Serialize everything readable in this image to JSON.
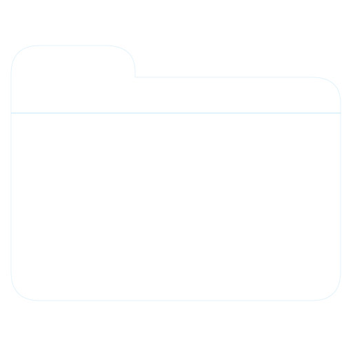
{
  "icon": {
    "name": "folder-icon",
    "colors": {
      "fill": "#ffffff",
      "stroke": "#e3f3fb"
    }
  }
}
